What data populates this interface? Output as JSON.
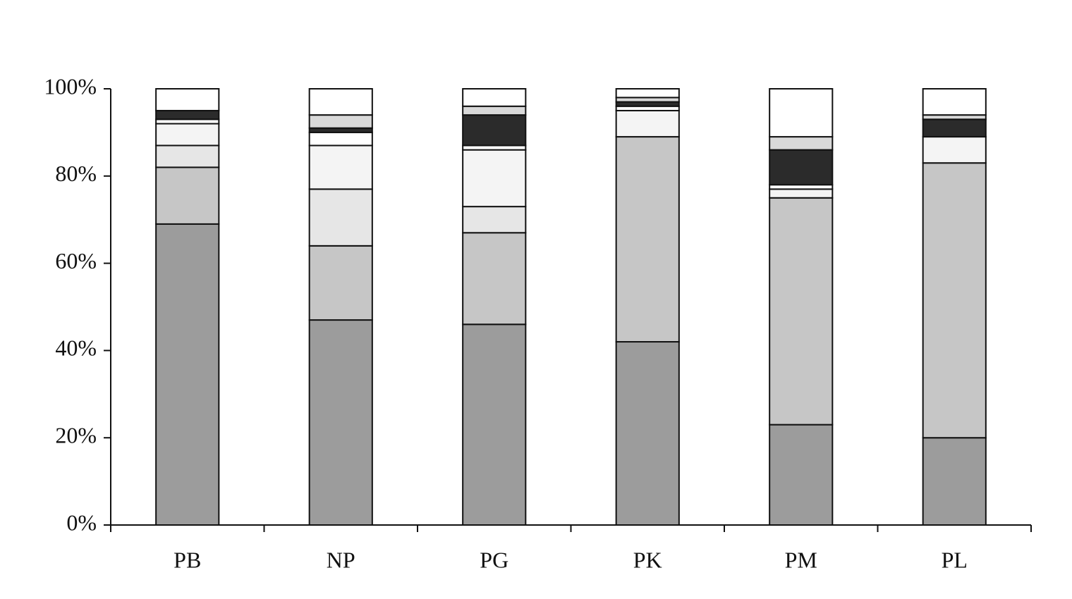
{
  "chart_data": {
    "type": "stacked_bar",
    "categories": [
      "PB",
      "NP",
      "PG",
      "PK",
      "PM",
      "PL"
    ],
    "series": [
      {
        "color": "#9c9c9c",
        "values": [
          69,
          47,
          46,
          42,
          23,
          20
        ]
      },
      {
        "color": "#c6c6c6",
        "values": [
          13,
          17,
          21,
          47,
          52,
          63
        ]
      },
      {
        "color": "#e6e6e6",
        "values": [
          5,
          13,
          6,
          0,
          0,
          0
        ]
      },
      {
        "color": "#f4f4f4",
        "values": [
          5,
          10,
          13,
          6,
          2,
          6
        ]
      },
      {
        "color": "#ffffff",
        "values": [
          1,
          3,
          1,
          1,
          1,
          0
        ]
      },
      {
        "color": "#2b2b2b",
        "values": [
          2,
          1,
          7,
          1,
          8,
          4
        ]
      },
      {
        "color": "#d9d9d9",
        "values": [
          0,
          3,
          2,
          1,
          3,
          1
        ]
      },
      {
        "color": "#ffffff",
        "values": [
          5,
          6,
          4,
          2,
          11,
          6
        ]
      }
    ],
    "ylim": [
      0,
      100
    ],
    "yticks": [
      {
        "value": 0,
        "label": "0%"
      },
      {
        "value": 20,
        "label": "20%"
      },
      {
        "value": 40,
        "label": "40%"
      },
      {
        "value": 60,
        "label": "60%"
      },
      {
        "value": 80,
        "label": "80%"
      },
      {
        "value": 100,
        "label": "100%"
      }
    ]
  }
}
